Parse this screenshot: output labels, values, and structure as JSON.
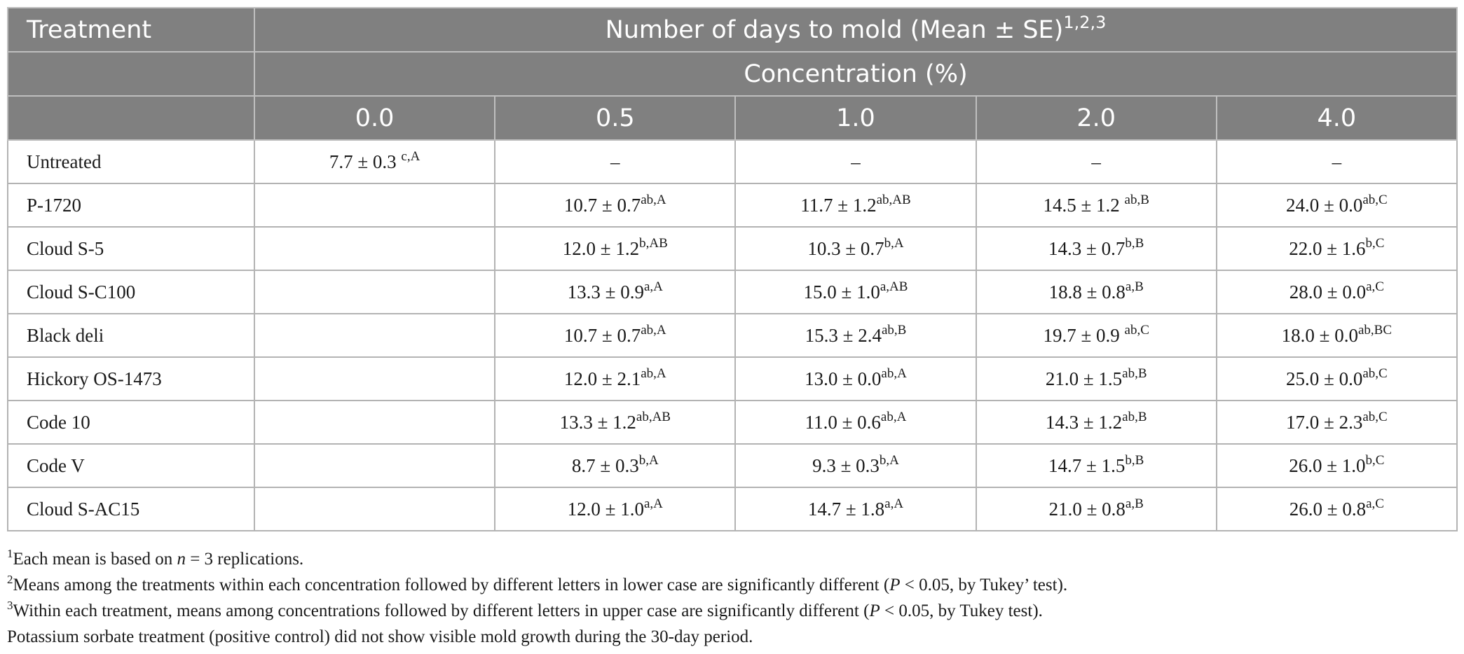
{
  "header": {
    "treatment_label": "Treatment",
    "title": "Number of days to mold (Mean ± SE)",
    "title_sup": "1,2,3",
    "concentration_label": "Concentration (%)",
    "concentrations": [
      "0.0",
      "0.5",
      "1.0",
      "2.0",
      "4.0"
    ]
  },
  "rows": [
    {
      "name": "Untreated",
      "cells": [
        {
          "v": "7.7 ± 0.3 ",
          "s": "c,A"
        },
        {
          "v": "–",
          "s": ""
        },
        {
          "v": "–",
          "s": ""
        },
        {
          "v": "–",
          "s": ""
        },
        {
          "v": "–",
          "s": ""
        }
      ]
    },
    {
      "name": "P-1720",
      "cells": [
        {
          "v": "",
          "s": ""
        },
        {
          "v": "10.7 ± 0.7",
          "s": "ab,A"
        },
        {
          "v": "11.7 ± 1.2",
          "s": "ab,AB"
        },
        {
          "v": "14.5 ± 1.2 ",
          "s": "ab,B"
        },
        {
          "v": "24.0 ± 0.0",
          "s": "ab,C"
        }
      ]
    },
    {
      "name": "Cloud S-5",
      "cells": [
        {
          "v": "",
          "s": ""
        },
        {
          "v": "12.0 ± 1.2",
          "s": "b,AB"
        },
        {
          "v": "10.3 ± 0.7",
          "s": "b,A"
        },
        {
          "v": "14.3 ± 0.7",
          "s": "b,B"
        },
        {
          "v": "22.0 ± 1.6",
          "s": "b,C"
        }
      ]
    },
    {
      "name": "Cloud S-C100",
      "cells": [
        {
          "v": "",
          "s": ""
        },
        {
          "v": "13.3 ± 0.9",
          "s": "a,A"
        },
        {
          "v": "15.0 ± 1.0",
          "s": "a,AB"
        },
        {
          "v": "18.8 ± 0.8",
          "s": "a,B"
        },
        {
          "v": "28.0 ± 0.0",
          "s": "a,C"
        }
      ]
    },
    {
      "name": "Black deli",
      "cells": [
        {
          "v": "",
          "s": ""
        },
        {
          "v": "10.7 ± 0.7",
          "s": "ab,A"
        },
        {
          "v": "15.3 ± 2.4",
          "s": "ab,B"
        },
        {
          "v": "19.7 ± 0.9 ",
          "s": "ab,C"
        },
        {
          "v": "18.0 ± 0.0",
          "s": "ab,BC"
        }
      ]
    },
    {
      "name": "Hickory OS-1473",
      "cells": [
        {
          "v": "",
          "s": ""
        },
        {
          "v": "12.0 ± 2.1",
          "s": "ab,A"
        },
        {
          "v": "13.0 ± 0.0",
          "s": "ab,A"
        },
        {
          "v": "21.0 ± 1.5",
          "s": "ab,B"
        },
        {
          "v": "25.0 ± 0.0",
          "s": "ab,C"
        }
      ]
    },
    {
      "name": "Code 10",
      "cells": [
        {
          "v": "",
          "s": ""
        },
        {
          "v": "13.3 ± 1.2",
          "s": "ab,AB"
        },
        {
          "v": "11.0 ± 0.6",
          "s": "ab,A"
        },
        {
          "v": "14.3 ± 1.2",
          "s": "ab,B"
        },
        {
          "v": "17.0 ± 2.3",
          "s": "ab,C"
        }
      ]
    },
    {
      "name": "Code V",
      "cells": [
        {
          "v": "",
          "s": ""
        },
        {
          "v": "8.7 ± 0.3",
          "s": "b,A"
        },
        {
          "v": "9.3 ± 0.3",
          "s": "b,A"
        },
        {
          "v": "14.7 ± 1.5",
          "s": "b,B"
        },
        {
          "v": "26.0 ± 1.0",
          "s": "b,C"
        }
      ]
    },
    {
      "name": "Cloud S-AC15",
      "cells": [
        {
          "v": "",
          "s": ""
        },
        {
          "v": "12.0 ± 1.0",
          "s": "a,A"
        },
        {
          "v": "14.7 ± 1.8",
          "s": "a,A"
        },
        {
          "v": "21.0 ± 0.8",
          "s": "a,B"
        },
        {
          "v": "26.0 ± 0.8",
          "s": "a,C"
        }
      ]
    }
  ],
  "footnotes": {
    "n1_mark": "1",
    "n1_a": "Each mean is based on ",
    "n1_n": "n",
    "n1_b": " = 3 replications.",
    "n2_mark": "2",
    "n2_a": "Means among the treatments within each concentration followed by different letters in lower case are significantly different (",
    "n2_p": "P",
    "n2_b": " < 0.05, by Tukey’ test).",
    "n3_mark": "3",
    "n3_a": "Within each treatment, means among concentrations followed by different letters in upper case are significantly different (",
    "n3_p": "P",
    "n3_b": " < 0.05, by Tukey test).",
    "n4": "Potassium sorbate treatment (positive control) did not show visible mold growth during the 30-day period."
  }
}
